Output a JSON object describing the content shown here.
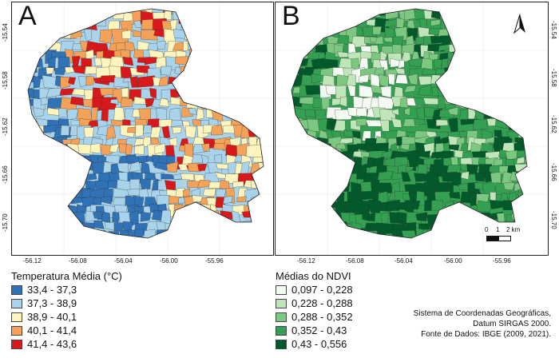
{
  "panels": {
    "a": {
      "letter": "A",
      "lon_ticks": [
        "-56.12",
        "-56.08",
        "-56.04",
        "-56.00",
        "-55.96"
      ],
      "lat_ticks": [
        "-15.54",
        "-15.58",
        "-15.62",
        "-15.66",
        "-15.70"
      ],
      "palette": [
        "#2f72b6",
        "#a9d3ea",
        "#fdf5bd",
        "#f4a259",
        "#d7191c"
      ]
    },
    "b": {
      "letter": "B",
      "lon_ticks": [
        "-56.12",
        "-56.08",
        "-56.04",
        "-56.00",
        "-55.96"
      ],
      "lat_ticks": [
        "-15.54",
        "-15.58",
        "-15.62",
        "-15.66",
        "-15.70"
      ],
      "palette": [
        "#f3faf1",
        "#bfe6b8",
        "#7cc880",
        "#33a052",
        "#02592a"
      ],
      "scale": {
        "zero": "0",
        "one": "1",
        "two": "2 km"
      },
      "north_icon": "north-arrow-icon"
    }
  },
  "legend_a": {
    "title": "Temperatura Média (°C)",
    "items": [
      {
        "label": "33,4 - 37,3",
        "color": "#2f72b6"
      },
      {
        "label": "37,3 - 38,9",
        "color": "#a9d3ea"
      },
      {
        "label": "38,9 - 40,1",
        "color": "#fdf5bd"
      },
      {
        "label": "40,1 - 41,4",
        "color": "#f4a259"
      },
      {
        "label": "41,4 - 43,6",
        "color": "#d7191c"
      }
    ]
  },
  "legend_b": {
    "title": "Médias do NDVI",
    "items": [
      {
        "label": "0,097 - 0,228",
        "color": "#f3faf1"
      },
      {
        "label": "0,228 - 0,288",
        "color": "#bfe6b8"
      },
      {
        "label": "0,288 - 0,352",
        "color": "#7cc880"
      },
      {
        "label": "0,352 - 0,43",
        "color": "#33a052"
      },
      {
        "label": "0,43 - 0,556",
        "color": "#02592a"
      }
    ]
  },
  "credits": {
    "line1": "Sistema de Coordenadas Geográficas,",
    "line2": "Datum SIRGAS 2000.",
    "line3": "Fonte de Dados: IBGE (2009, 2021)."
  }
}
